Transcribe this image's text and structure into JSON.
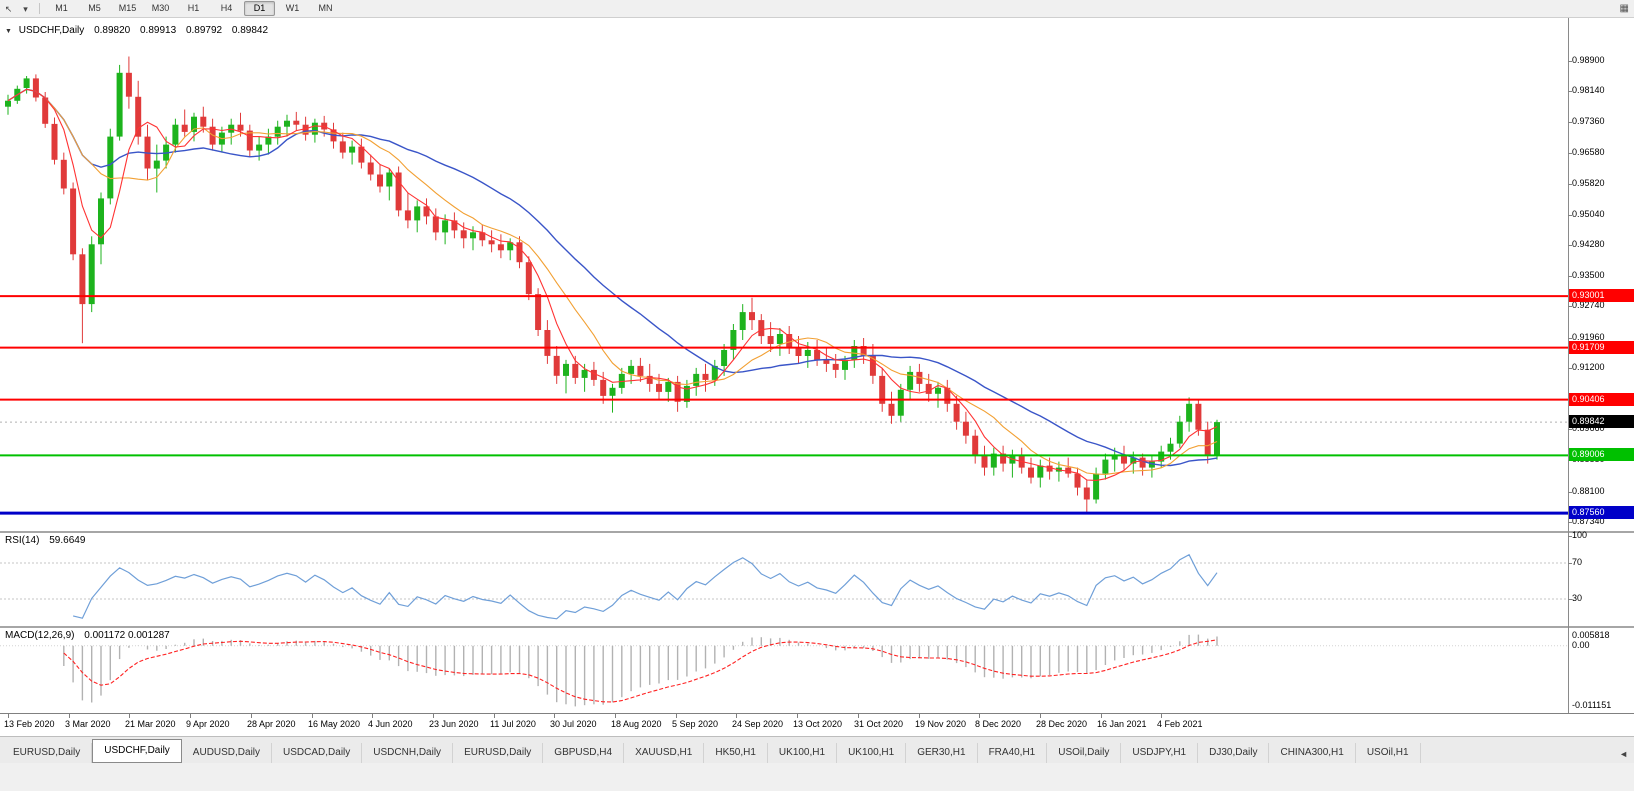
{
  "toolbar": {
    "timeframe_labels": [
      "M1",
      "M5",
      "M15",
      "M30",
      "H1",
      "H4",
      "D1",
      "W1",
      "MN"
    ],
    "active_timeframe": "D1",
    "icons": {
      "cursor": "↖",
      "caret": "▾",
      "panel": "▦"
    }
  },
  "overlay": {
    "symbol_caret": "▼",
    "symbol": "USDCHF,Daily",
    "open": "0.89820",
    "high": "0.89913",
    "low": "0.89792",
    "close": "0.89842"
  },
  "indicators": {
    "rsi": {
      "label": "RSI(14)",
      "value_text": "59.6649",
      "level_labels": [
        "100",
        "70",
        "30"
      ],
      "level_values": [
        100,
        70,
        30
      ],
      "line_color": "#6f9fd8"
    },
    "macd": {
      "label": "MACD(12,26,9)",
      "value_text": "0.001172 0.001287",
      "scale_labels": [
        "0.005818",
        "0.00",
        "-0.011151"
      ],
      "histogram_color": "#b2b2b2",
      "signal_color": "#ff2222"
    }
  },
  "axes": {
    "price_labels": [
      "0.98900",
      "0.98140",
      "0.97360",
      "0.96580",
      "0.95820",
      "0.95040",
      "0.94280",
      "0.93500",
      "0.92740",
      "0.91960",
      "0.91200",
      "0.90420",
      "0.89660",
      "0.88880",
      "0.88100",
      "0.87340"
    ],
    "date_labels": [
      "13 Feb 2020",
      "3 Mar 2020",
      "21 Mar 2020",
      "9 Apr 2020",
      "28 Apr 2020",
      "16 May 2020",
      "4 Jun 2020",
      "23 Jun 2020",
      "11 Jul 2020",
      "30 Jul 2020",
      "18 Aug 2020",
      "5 Sep 2020",
      "24 Sep 2020",
      "13 Oct 2020",
      "31 Oct 2020",
      "19 Nov 2020",
      "8 Dec 2020",
      "28 Dec 2020",
      "16 Jan 2021",
      "4 Feb 2021"
    ]
  },
  "hlines": [
    {
      "price": 0.93001,
      "label": "0.93001",
      "color": "#ff0000",
      "thickness": 2
    },
    {
      "price": 0.91709,
      "label": "0.91709",
      "color": "#ff0000",
      "thickness": 2
    },
    {
      "price": 0.90406,
      "label": "0.90406",
      "color": "#ff0000",
      "thickness": 2
    },
    {
      "price": 0.89006,
      "label": "0.89006",
      "color": "#00c000",
      "thickness": 2
    },
    {
      "price": 0.8756,
      "label": "0.87560",
      "color": "#0000c8",
      "thickness": 3
    }
  ],
  "current_price": {
    "value": 0.89842,
    "label": "0.89842",
    "badge_color": "#000000"
  },
  "chart_data": {
    "type": "candlestick",
    "title": "USDCHF,Daily",
    "x_range": [
      "13 Feb 2020",
      "12 Feb 2021"
    ],
    "price_range": {
      "top": 1.0,
      "bottom": 0.8711
    },
    "note": "OHLC estimated from chart; each candle compresses ~2 trading days",
    "up_color": "#1db31d",
    "down_color": "#e03a3a",
    "ma_fast_color": "#ff3333",
    "ma_mid_color": "#f2a033",
    "ma_slow_color": "#3a55c8",
    "ma_fast_period": 5,
    "ma_mid_period": 10,
    "ma_slow_period": 22,
    "ohlc": [
      [
        0.9775,
        0.9805,
        0.9755,
        0.979
      ],
      [
        0.979,
        0.9828,
        0.9782,
        0.982
      ],
      [
        0.9822,
        0.9852,
        0.9808,
        0.9846
      ],
      [
        0.9846,
        0.9856,
        0.9788,
        0.9798
      ],
      [
        0.9798,
        0.9812,
        0.9722,
        0.9732
      ],
      [
        0.9732,
        0.9748,
        0.963,
        0.9642
      ],
      [
        0.9642,
        0.966,
        0.9555,
        0.957
      ],
      [
        0.957,
        0.9585,
        0.939,
        0.9405
      ],
      [
        0.9405,
        0.942,
        0.9182,
        0.928
      ],
      [
        0.928,
        0.945,
        0.926,
        0.943
      ],
      [
        0.943,
        0.956,
        0.938,
        0.9545
      ],
      [
        0.9545,
        0.972,
        0.953,
        0.97
      ],
      [
        0.97,
        0.988,
        0.969,
        0.986
      ],
      [
        0.986,
        0.9901,
        0.977,
        0.98
      ],
      [
        0.98,
        0.984,
        0.968,
        0.97
      ],
      [
        0.97,
        0.973,
        0.959,
        0.962
      ],
      [
        0.962,
        0.968,
        0.956,
        0.964
      ],
      [
        0.964,
        0.97,
        0.962,
        0.968
      ],
      [
        0.968,
        0.9745,
        0.966,
        0.973
      ],
      [
        0.973,
        0.9768,
        0.97,
        0.9712
      ],
      [
        0.9712,
        0.976,
        0.9688,
        0.975
      ],
      [
        0.975,
        0.9775,
        0.971,
        0.9725
      ],
      [
        0.9725,
        0.9745,
        0.9665,
        0.968
      ],
      [
        0.968,
        0.9725,
        0.966,
        0.971
      ],
      [
        0.971,
        0.9745,
        0.968,
        0.973
      ],
      [
        0.973,
        0.976,
        0.97,
        0.9715
      ],
      [
        0.9715,
        0.973,
        0.965,
        0.9665
      ],
      [
        0.9665,
        0.97,
        0.964,
        0.968
      ],
      [
        0.968,
        0.972,
        0.9655,
        0.97
      ],
      [
        0.97,
        0.974,
        0.968,
        0.9725
      ],
      [
        0.9725,
        0.9755,
        0.97,
        0.974
      ],
      [
        0.974,
        0.9762,
        0.9715,
        0.973
      ],
      [
        0.973,
        0.975,
        0.969,
        0.9705
      ],
      [
        0.9705,
        0.9745,
        0.9685,
        0.9735
      ],
      [
        0.9735,
        0.9752,
        0.97,
        0.9718
      ],
      [
        0.9718,
        0.9735,
        0.967,
        0.9688
      ],
      [
        0.9688,
        0.971,
        0.9645,
        0.966
      ],
      [
        0.966,
        0.969,
        0.963,
        0.9675
      ],
      [
        0.9675,
        0.9695,
        0.962,
        0.9635
      ],
      [
        0.9635,
        0.9655,
        0.959,
        0.9605
      ],
      [
        0.9605,
        0.963,
        0.956,
        0.9575
      ],
      [
        0.9575,
        0.962,
        0.954,
        0.961
      ],
      [
        0.961,
        0.9625,
        0.95,
        0.9515
      ],
      [
        0.9515,
        0.956,
        0.947,
        0.949
      ],
      [
        0.949,
        0.954,
        0.946,
        0.9525
      ],
      [
        0.9525,
        0.9545,
        0.948,
        0.95
      ],
      [
        0.95,
        0.952,
        0.944,
        0.946
      ],
      [
        0.946,
        0.9505,
        0.943,
        0.949
      ],
      [
        0.949,
        0.951,
        0.9445,
        0.9465
      ],
      [
        0.9465,
        0.9485,
        0.942,
        0.9445
      ],
      [
        0.9445,
        0.9475,
        0.9415,
        0.946
      ],
      [
        0.946,
        0.948,
        0.9425,
        0.944
      ],
      [
        0.944,
        0.9465,
        0.941,
        0.943
      ],
      [
        0.943,
        0.9455,
        0.9395,
        0.9415
      ],
      [
        0.9415,
        0.9445,
        0.939,
        0.9435
      ],
      [
        0.9435,
        0.945,
        0.937,
        0.9385
      ],
      [
        0.9385,
        0.94,
        0.929,
        0.9305
      ],
      [
        0.9305,
        0.932,
        0.92,
        0.9215
      ],
      [
        0.9215,
        0.924,
        0.913,
        0.915
      ],
      [
        0.915,
        0.9175,
        0.908,
        0.91
      ],
      [
        0.91,
        0.914,
        0.9056,
        0.913
      ],
      [
        0.913,
        0.915,
        0.908,
        0.9095
      ],
      [
        0.9095,
        0.913,
        0.906,
        0.9115
      ],
      [
        0.9115,
        0.9135,
        0.9075,
        0.909
      ],
      [
        0.909,
        0.911,
        0.903,
        0.905
      ],
      [
        0.905,
        0.908,
        0.9008,
        0.907
      ],
      [
        0.907,
        0.912,
        0.9055,
        0.9105
      ],
      [
        0.9105,
        0.914,
        0.908,
        0.9125
      ],
      [
        0.9125,
        0.9145,
        0.9085,
        0.91
      ],
      [
        0.91,
        0.913,
        0.906,
        0.908
      ],
      [
        0.908,
        0.9105,
        0.904,
        0.906
      ],
      [
        0.906,
        0.9095,
        0.9035,
        0.9085
      ],
      [
        0.9085,
        0.91,
        0.901,
        0.9035
      ],
      [
        0.9035,
        0.909,
        0.902,
        0.9075
      ],
      [
        0.9075,
        0.912,
        0.905,
        0.9105
      ],
      [
        0.9105,
        0.913,
        0.906,
        0.909
      ],
      [
        0.909,
        0.914,
        0.9075,
        0.9125
      ],
      [
        0.9125,
        0.918,
        0.91,
        0.9165
      ],
      [
        0.9165,
        0.923,
        0.914,
        0.9215
      ],
      [
        0.9215,
        0.928,
        0.919,
        0.926
      ],
      [
        0.926,
        0.9296,
        0.9215,
        0.924
      ],
      [
        0.924,
        0.9255,
        0.918,
        0.92
      ],
      [
        0.92,
        0.9235,
        0.916,
        0.918
      ],
      [
        0.918,
        0.922,
        0.915,
        0.9205
      ],
      [
        0.9205,
        0.9225,
        0.9155,
        0.917
      ],
      [
        0.917,
        0.92,
        0.913,
        0.915
      ],
      [
        0.915,
        0.9185,
        0.912,
        0.9165
      ],
      [
        0.9165,
        0.919,
        0.9125,
        0.914
      ],
      [
        0.914,
        0.917,
        0.911,
        0.913
      ],
      [
        0.913,
        0.9155,
        0.9095,
        0.9115
      ],
      [
        0.9115,
        0.915,
        0.909,
        0.914
      ],
      [
        0.914,
        0.919,
        0.912,
        0.9175
      ],
      [
        0.9175,
        0.9195,
        0.913,
        0.915
      ],
      [
        0.915,
        0.918,
        0.908,
        0.91
      ],
      [
        0.91,
        0.912,
        0.901,
        0.903
      ],
      [
        0.903,
        0.906,
        0.898,
        0.9
      ],
      [
        0.9,
        0.908,
        0.8985,
        0.9065
      ],
      [
        0.9065,
        0.9125,
        0.904,
        0.911
      ],
      [
        0.911,
        0.913,
        0.906,
        0.908
      ],
      [
        0.908,
        0.9105,
        0.9035,
        0.9055
      ],
      [
        0.9055,
        0.9085,
        0.902,
        0.907
      ],
      [
        0.907,
        0.909,
        0.901,
        0.903
      ],
      [
        0.903,
        0.905,
        0.8965,
        0.8985
      ],
      [
        0.8985,
        0.901,
        0.893,
        0.895
      ],
      [
        0.895,
        0.8965,
        0.888,
        0.89
      ],
      [
        0.89,
        0.8925,
        0.885,
        0.887
      ],
      [
        0.887,
        0.892,
        0.885,
        0.8905
      ],
      [
        0.8905,
        0.8925,
        0.886,
        0.888
      ],
      [
        0.888,
        0.8915,
        0.8845,
        0.89
      ],
      [
        0.89,
        0.892,
        0.8855,
        0.887
      ],
      [
        0.887,
        0.8895,
        0.883,
        0.8845
      ],
      [
        0.8845,
        0.889,
        0.882,
        0.8875
      ],
      [
        0.8875,
        0.8895,
        0.884,
        0.886
      ],
      [
        0.886,
        0.8885,
        0.8835,
        0.887
      ],
      [
        0.887,
        0.8895,
        0.8845,
        0.8855
      ],
      [
        0.8855,
        0.887,
        0.88,
        0.882
      ],
      [
        0.882,
        0.884,
        0.8757,
        0.879
      ],
      [
        0.879,
        0.887,
        0.878,
        0.8855
      ],
      [
        0.8855,
        0.8905,
        0.884,
        0.889
      ],
      [
        0.889,
        0.892,
        0.886,
        0.89
      ],
      [
        0.89,
        0.8925,
        0.8865,
        0.888
      ],
      [
        0.888,
        0.891,
        0.8855,
        0.8895
      ],
      [
        0.8895,
        0.8905,
        0.885,
        0.887
      ],
      [
        0.887,
        0.89,
        0.8845,
        0.8885
      ],
      [
        0.8885,
        0.8925,
        0.887,
        0.891
      ],
      [
        0.891,
        0.8945,
        0.889,
        0.893
      ],
      [
        0.893,
        0.9,
        0.892,
        0.8985
      ],
      [
        0.8985,
        0.9046,
        0.896,
        0.903
      ],
      [
        0.903,
        0.904,
        0.895,
        0.8965
      ],
      [
        0.8965,
        0.8985,
        0.888,
        0.89
      ],
      [
        0.89,
        0.899,
        0.889,
        0.89842
      ]
    ]
  },
  "tabs": {
    "active_index": 1,
    "scroll_icon": "◄",
    "items": [
      "EURUSD,Daily",
      "USDCHF,Daily",
      "AUDUSD,Daily",
      "USDCAD,Daily",
      "USDCNH,Daily",
      "EURUSD,Daily",
      "GBPUSD,H4",
      "XAUUSD,H1",
      "HK50,H1",
      "UK100,H1",
      "UK100,H1",
      "GER30,H1",
      "FRA40,H1",
      "USOil,Daily",
      "USDJPY,H1",
      "DJ30,Daily",
      "CHINA300,H1",
      "USOil,H1"
    ]
  }
}
